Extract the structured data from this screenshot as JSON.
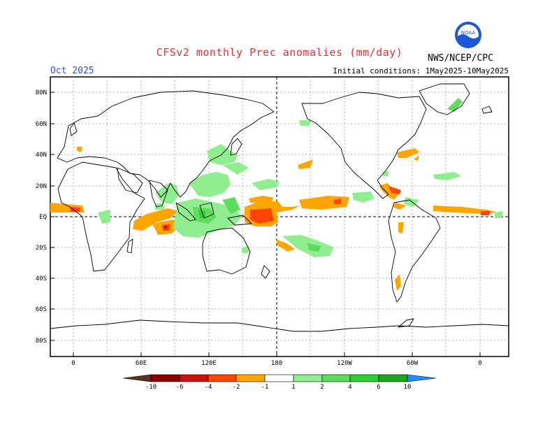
{
  "header": {
    "title": "CFSv2 monthly Prec anomalies (mm/day)",
    "month": "Oct 2025",
    "initial_conditions": "Initial conditions: 1May2025-10May2025",
    "org": "NWS/NCEP/CPC",
    "logo_text": "NOAA"
  },
  "map": {
    "projection": "cylindrical equidistant, 0-360 centered on 180",
    "gridlines": "dotted every 20 deg lat",
    "lat_labels": [
      "80N",
      "60N",
      "40N",
      "20N",
      "EQ",
      "20S",
      "40S",
      "60S",
      "80S"
    ],
    "lon_labels": [
      "0",
      "60E",
      "120E",
      "180",
      "120W",
      "60W",
      "0"
    ]
  },
  "colorbar": {
    "labels": [
      "-10",
      "-6",
      "-4",
      "-2",
      "-1",
      "1",
      "2",
      "4",
      "6",
      "10"
    ],
    "colors": {
      "lt_-10": "#5a3020",
      "-10_-6": "#8b0000",
      "-6_-4": "#cc1010",
      "-4_-2": "#ff4500",
      "-2_-1": "#ffa500",
      "-1_1": "#ffffff",
      "1_2": "#90ee90",
      "2_4": "#5ddc5d",
      "4_6": "#32cd32",
      "6_10": "#1fa41f",
      "gt_10": "#1e90ff"
    }
  }
}
